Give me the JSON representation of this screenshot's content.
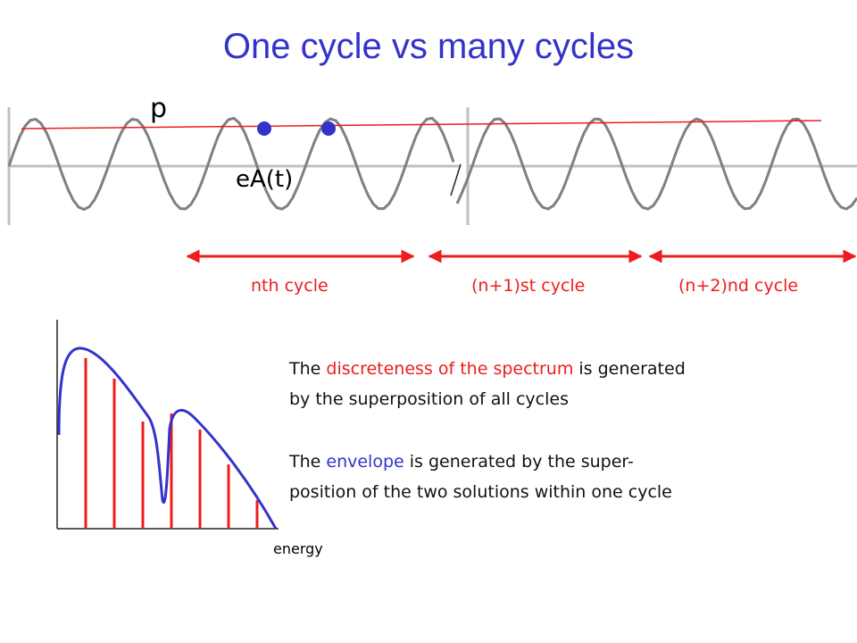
{
  "title": "One cycle vs many cycles",
  "labels": {
    "p": "p",
    "eA": "eA(t)",
    "energy": "energy"
  },
  "cycles": {
    "n": "nth cycle",
    "n_plus_1": "(n+1)st cycle",
    "n_plus_2": "(n+2)nd cycle"
  },
  "paragraph1": {
    "before": "The ",
    "highlight": "discreteness of the spectrum",
    "after_line1": " is generated",
    "line2": "by the superposition of all cycles"
  },
  "paragraph2": {
    "before": "The ",
    "highlight": "envelope",
    "after_line1": " is generated by the super-",
    "line2": "position of the two solutions within one cycle"
  },
  "colors": {
    "title": "#3333cc",
    "accent_red": "#ee1c1c",
    "blue": "#3333cc",
    "wave": "#808080",
    "axis": "#c0c0c0"
  }
}
